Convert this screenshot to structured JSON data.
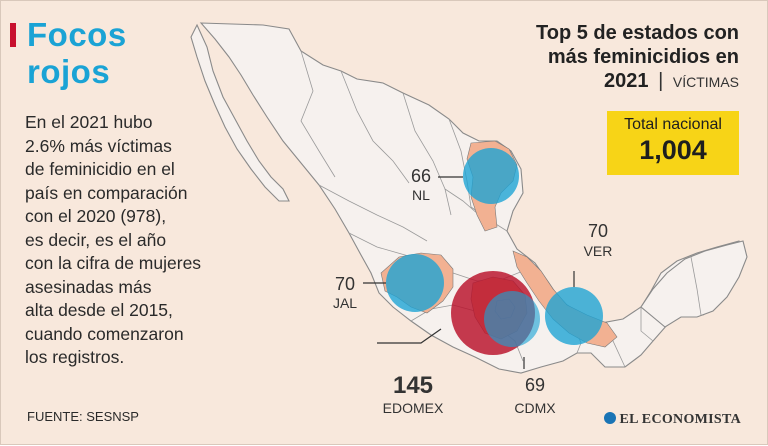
{
  "title": {
    "line1": "Focos",
    "line2": "rojos"
  },
  "description": [
    "En el 2021 hubo",
    "2.6% más víctimas",
    "de feminicidio en el",
    "país en comparación",
    "con el 2020 (978),",
    "es decir, es el año",
    "con la cifra de mujeres",
    "asesinadas más",
    "alta desde el 2015,",
    "cuando comenzaron",
    "los registros."
  ],
  "headline": {
    "line1": "Top 5 de estados con",
    "line2": "más feminicidios en",
    "year": "2021",
    "separator": "|",
    "unit": "VÍCTIMAS"
  },
  "total": {
    "label": "Total nacional",
    "value": "1,004"
  },
  "source": "FUENTE: SESNSP",
  "brand": "EL ECONOMISTA",
  "colors": {
    "background": "#f8e8dc",
    "title_blue": "#1aa3d5",
    "accent_red": "#c8102e",
    "bubble_blue": "#1aa3d5",
    "bubble_red": "#b8102a",
    "state_fill": "#f2b192",
    "total_box": "#f7d417"
  },
  "states": [
    {
      "code": "NL",
      "value": 66
    },
    {
      "code": "JAL",
      "value": 70
    },
    {
      "code": "VER",
      "value": 70
    },
    {
      "code": "EDOMEX",
      "value": 145
    },
    {
      "code": "CDMX",
      "value": 69
    }
  ],
  "labels": {
    "nl_value": "66",
    "nl_name": "NL",
    "jal_value": "70",
    "jal_name": "JAL",
    "ver_value": "70",
    "ver_name": "VER",
    "edomex_value": "145",
    "edomex_name": "EDOMEX",
    "cdmx_value": "69",
    "cdmx_name": "CDMX"
  }
}
